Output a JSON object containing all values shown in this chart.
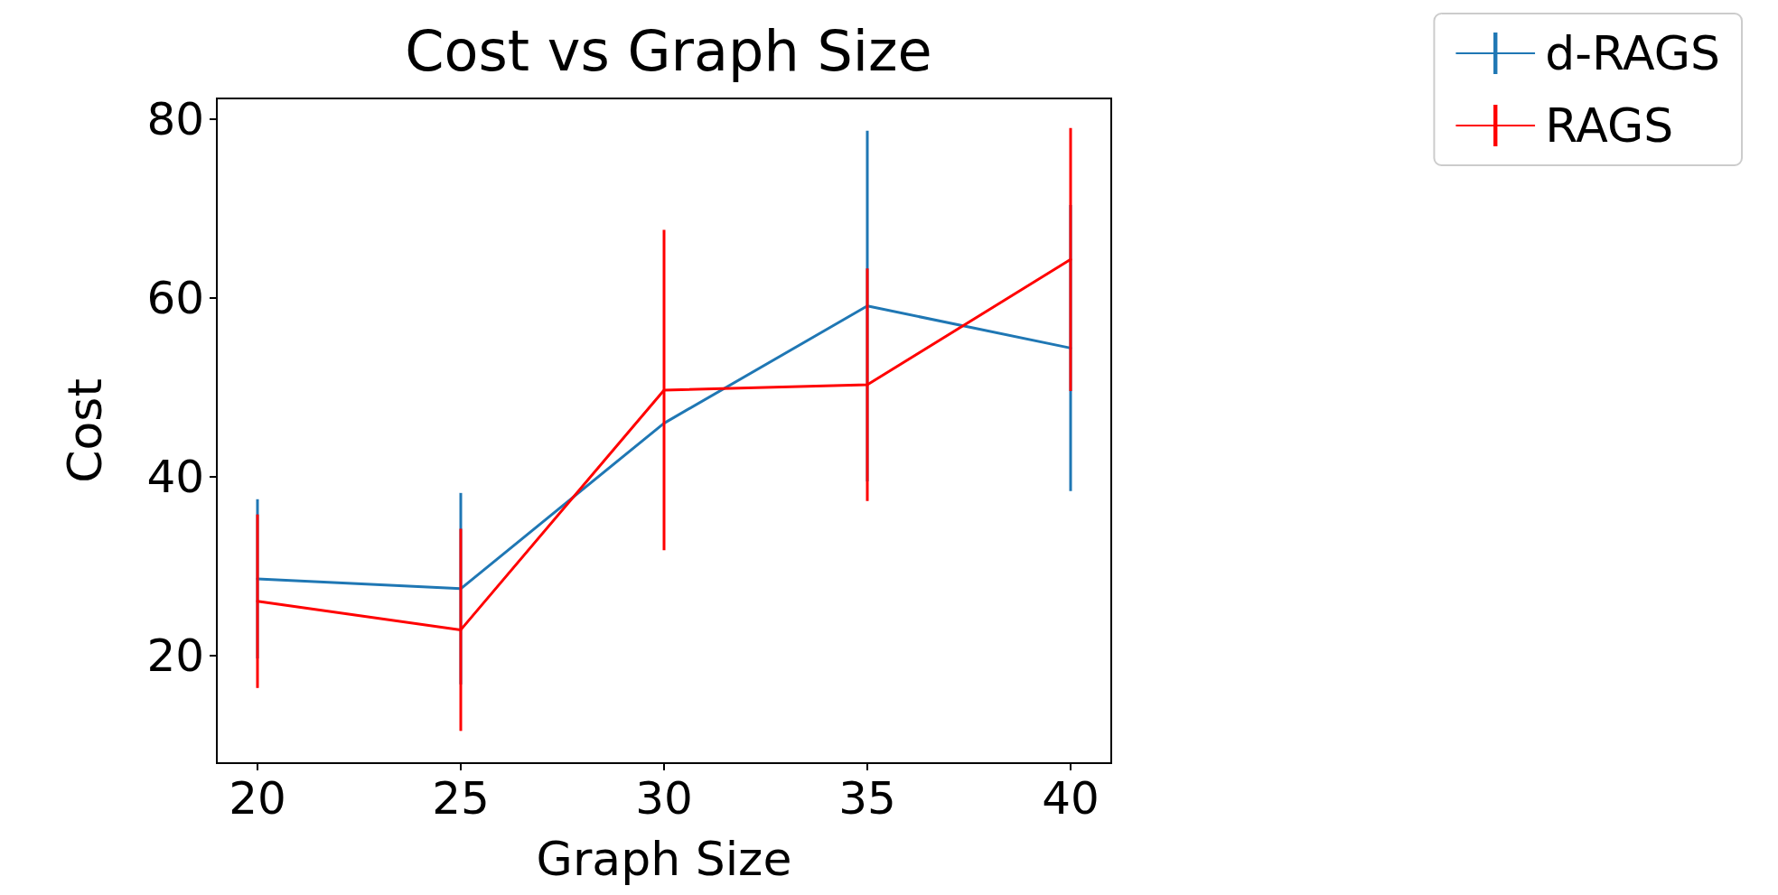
{
  "chart_data": {
    "type": "line",
    "title": "Cost vs Graph Size",
    "xlabel": "Graph Size",
    "ylabel": "Cost",
    "x": [
      20,
      25,
      30,
      35,
      40
    ],
    "series": [
      {
        "name": "d-RAGS",
        "color": "#1f77b4",
        "values": [
          28.6,
          27.5,
          46,
          59.1,
          54.4
        ],
        "errors": [
          8.9,
          10.7,
          null,
          19.6,
          16
        ]
      },
      {
        "name": "RAGS",
        "color": "#ff0000",
        "values": [
          26.1,
          22.9,
          49.7,
          50.3,
          64.3
        ],
        "errors": [
          9.7,
          11.3,
          17.9,
          13,
          14.7
        ]
      }
    ],
    "xlim": [
      19,
      41
    ],
    "xticks": [
      20,
      25,
      30,
      35,
      40
    ],
    "ylim": [
      8,
      82.3
    ],
    "yticks": [
      20,
      40,
      60,
      80
    ],
    "grid": false,
    "legend": "top right",
    "marker": "none",
    "line_style": "solid"
  }
}
